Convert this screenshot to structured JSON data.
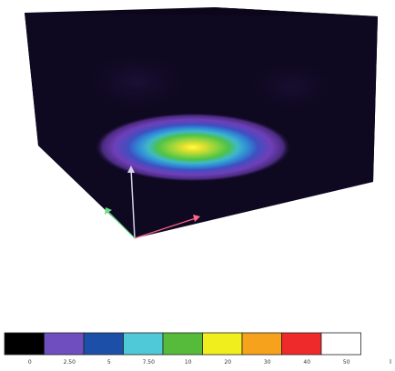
{
  "legend": {
    "colors": [
      "#000000",
      "#6f4fbf",
      "#1c4fa8",
      "#4fc8d8",
      "#56bb3a",
      "#f0ee1c",
      "#f7a21c",
      "#ee2a2a",
      "#ffffff"
    ],
    "labels": [
      "0",
      "2.50",
      "5",
      "7.50",
      "10",
      "20",
      "30",
      "40",
      "50"
    ],
    "unit": "I"
  },
  "scene": {
    "box_color": "#0e0820",
    "axis_colors": {
      "vertical": "#d8d0f0",
      "red": "#ff6688",
      "green": "#66dd88"
    }
  }
}
